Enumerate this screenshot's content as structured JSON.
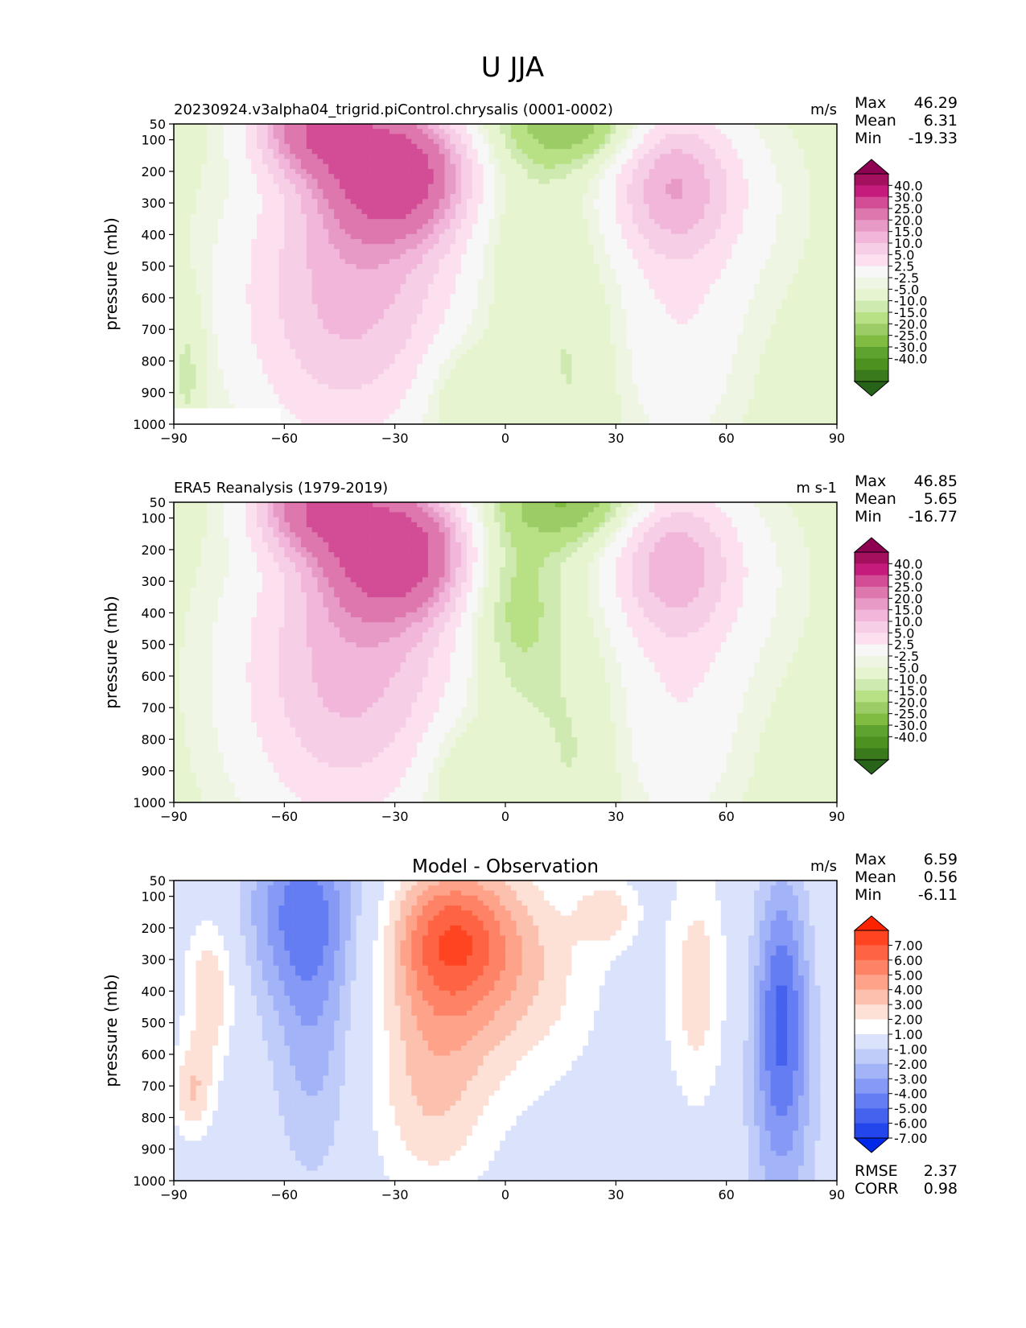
{
  "figure_title": "U JJA",
  "shared": {
    "ylabel": "pressure (mb)",
    "x_ticks": [
      -90,
      -60,
      -30,
      0,
      30,
      60,
      90
    ],
    "y_ticks": [
      50,
      100,
      200,
      300,
      400,
      500,
      600,
      700,
      800,
      900,
      1000
    ],
    "stat_labels": [
      "Max",
      "Mean",
      "Min"
    ],
    "metric_labels": [
      "RMSE",
      "CORR"
    ]
  },
  "chart_data": [
    {
      "type": "heatmap",
      "title": "20230924.v3alpha04_trigrid.piControl.chrysalis (0001-0002)",
      "units": "m/s",
      "xlim": [
        -90,
        90
      ],
      "ylim": [
        1000,
        50
      ],
      "stats": {
        "max": "46.29",
        "mean": "6.31",
        "min": "-19.33"
      },
      "colorbar_labels": [
        "40.0",
        "30.0",
        "25.0",
        "20.0",
        "15.0",
        "10.0",
        "5.0",
        "2.5",
        "-2.5",
        "-5.0",
        "-10.0",
        "-15.0",
        "-20.0",
        "-25.0",
        "-30.0",
        "-40.0"
      ],
      "colors": [
        "#8e0152",
        "#a3105e",
        "#c51b7d",
        "#d24d95",
        "#de77ae",
        "#e89ac6",
        "#f1b6da",
        "#f6cfe6",
        "#fde0ef",
        "#f7f7f7",
        "#eef6e3",
        "#e6f5d0",
        "#cfeab0",
        "#b8e186",
        "#9ccc66",
        "#7fbc41",
        "#5ea22f",
        "#4d9221",
        "#3a7a1c",
        "#276419"
      ],
      "features": [
        {
          "name": "southern-jet",
          "peak_lat": -30,
          "peak_level": 200,
          "value": 40
        },
        {
          "name": "northern-jet",
          "peak_lat": 45,
          "peak_level": 200,
          "value": 20
        },
        {
          "name": "equatorial-easterlies",
          "peak_lat": -12,
          "peak_level": 900,
          "value": -5
        },
        {
          "name": "upper-easterlies",
          "peak_lat": 15,
          "peak_level": 50,
          "value": -15
        }
      ]
    },
    {
      "type": "heatmap",
      "title": "ERA5 Reanalysis (1979-2019)",
      "units": "m s-1",
      "xlim": [
        -90,
        90
      ],
      "ylim": [
        1000,
        50
      ],
      "stats": {
        "max": "46.85",
        "mean": "5.65",
        "min": "-16.77"
      },
      "colorbar_labels": [
        "40.0",
        "30.0",
        "25.0",
        "20.0",
        "15.0",
        "10.0",
        "5.0",
        "2.5",
        "-2.5",
        "-5.0",
        "-10.0",
        "-15.0",
        "-20.0",
        "-25.0",
        "-30.0",
        "-40.0"
      ],
      "colors": [
        "#8e0152",
        "#a3105e",
        "#c51b7d",
        "#d24d95",
        "#de77ae",
        "#e89ac6",
        "#f1b6da",
        "#f6cfe6",
        "#fde0ef",
        "#f7f7f7",
        "#eef6e3",
        "#e6f5d0",
        "#cfeab0",
        "#b8e186",
        "#9ccc66",
        "#7fbc41",
        "#5ea22f",
        "#4d9221",
        "#3a7a1c",
        "#276419"
      ],
      "features": [
        {
          "name": "southern-jet",
          "peak_lat": -30,
          "peak_level": 200,
          "value": 40
        },
        {
          "name": "northern-jet",
          "peak_lat": 45,
          "peak_level": 200,
          "value": 20
        },
        {
          "name": "equatorial-easterlies",
          "peak_lat": -12,
          "peak_level": 900,
          "value": -5
        },
        {
          "name": "upper-easterlies",
          "peak_lat": 10,
          "peak_level": 50,
          "value": -15
        }
      ]
    },
    {
      "type": "heatmap",
      "title": "Model - Observation",
      "units": "m/s",
      "xlim": [
        -90,
        90
      ],
      "ylim": [
        1000,
        50
      ],
      "stats": {
        "max": "6.59",
        "mean": "0.56",
        "min": "-6.11"
      },
      "metrics": {
        "rmse": "2.37",
        "corr": "0.98"
      },
      "colorbar_labels": [
        "7.00",
        "6.00",
        "5.00",
        "4.00",
        "3.00",
        "2.00",
        "1.00",
        "-1.00",
        "-2.00",
        "-3.00",
        "-4.00",
        "-5.00",
        "-6.00",
        "-7.00"
      ],
      "colors": [
        "#ff2200",
        "#ff4422",
        "#fe6344",
        "#fe8366",
        "#fea38a",
        "#fcc1ae",
        "#fde0d6",
        "#ffffff",
        "#dbe2fb",
        "#bfcbf9",
        "#a2b3f8",
        "#8599f5",
        "#647df2",
        "#4562ef",
        "#2345ec",
        "#0028e8"
      ],
      "features": [
        {
          "name": "positive-bias-upper-tropics",
          "peak_lat": -15,
          "peak_level": 250,
          "value": 5
        },
        {
          "name": "negative-bias-southern-midlat",
          "peak_lat": -55,
          "peak_level": 150,
          "value": -4
        },
        {
          "name": "negative-bias-northern-highlat",
          "peak_lat": 75,
          "peak_level": 400,
          "value": -4
        },
        {
          "name": "positive-bias-southern-highlat",
          "peak_lat": -80,
          "peak_level": 400,
          "value": 3
        }
      ]
    }
  ]
}
